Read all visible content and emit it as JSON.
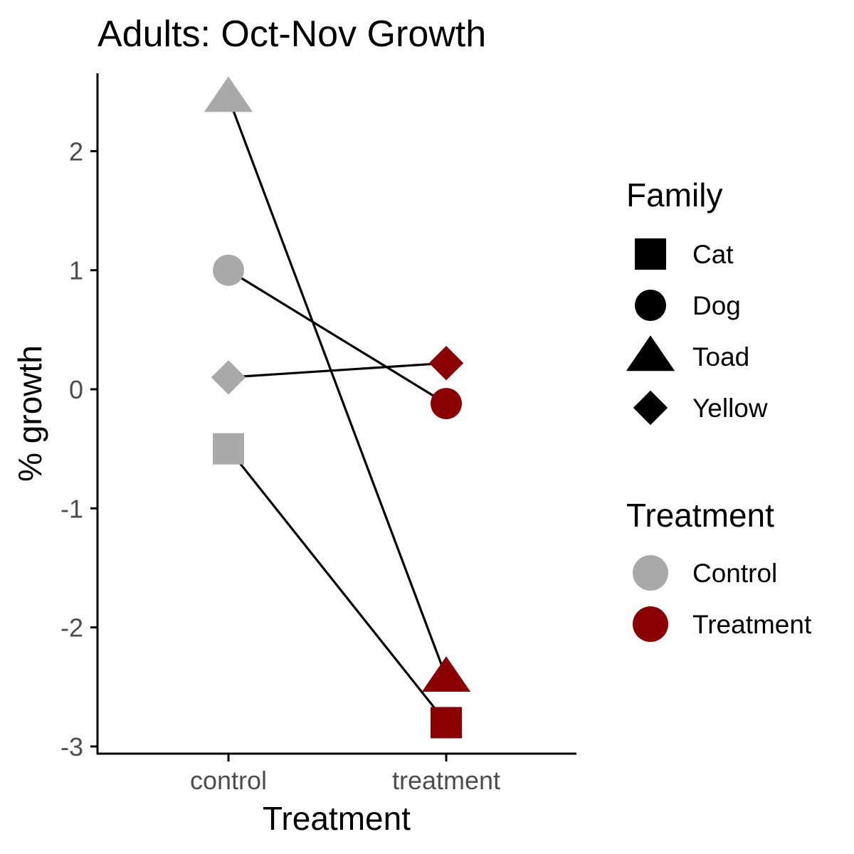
{
  "chart_data": {
    "type": "scatter",
    "title": "Adults: Oct-Nov Growth",
    "xlabel": "Treatment",
    "ylabel": "% growth",
    "categories": [
      "control",
      "treatment"
    ],
    "ylim": [
      -3.05,
      2.65
    ],
    "yticks": [
      -3,
      -2,
      -1,
      0,
      1,
      2
    ],
    "grid": false,
    "connect_points_by": "family",
    "line_color": "#000000",
    "families": [
      {
        "name": "Cat",
        "shape": "square",
        "values": {
          "control": -0.5,
          "treatment": -2.8
        }
      },
      {
        "name": "Dog",
        "shape": "circle",
        "values": {
          "control": 1.0,
          "treatment": -0.12
        }
      },
      {
        "name": "Toad",
        "shape": "triangle",
        "values": {
          "control": 2.45,
          "treatment": -2.42
        }
      },
      {
        "name": "Yellow",
        "shape": "diamond",
        "values": {
          "control": 0.1,
          "treatment": 0.22
        }
      }
    ],
    "legend": {
      "placement": "right",
      "family": {
        "title": "Family",
        "items": [
          {
            "label": "Cat",
            "shape": "square"
          },
          {
            "label": "Dog",
            "shape": "circle"
          },
          {
            "label": "Toad",
            "shape": "triangle"
          },
          {
            "label": "Yellow",
            "shape": "diamond"
          }
        ]
      },
      "treatment": {
        "title": "Treatment",
        "items": [
          {
            "label": "Control",
            "color": "#A9A9A9",
            "category": "control"
          },
          {
            "label": "Treatment",
            "color": "#8B0000",
            "category": "treatment"
          }
        ]
      }
    }
  }
}
